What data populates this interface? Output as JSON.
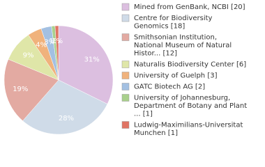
{
  "chart_data": {
    "type": "pie",
    "labels": [
      [
        "Mined from GenBank, NCBI [20]"
      ],
      [
        "Centre for Biodiversity",
        "Genomics [18]"
      ],
      [
        "Smithsonian Institution,",
        "National Museum of Natural",
        "Histor... [12]"
      ],
      [
        "Naturalis Biodiversity Center [6]"
      ],
      [
        "University of Guelph [3]"
      ],
      [
        "GATC Biotech AG [2]"
      ],
      [
        "University of Johannesburg,",
        "Department of Botany and Plant",
        "... [1]"
      ],
      [
        "Ludwig-Maximilians-Universitat",
        "Munchen [1]"
      ]
    ],
    "values": [
      31,
      28,
      19,
      9,
      4,
      3,
      1,
      1
    ],
    "value_labels": [
      "31%",
      "28%",
      "19%",
      "9%",
      "4%",
      "3%",
      "1%",
      "1%"
    ],
    "colors": [
      "#dcbfe0",
      "#cfdbe8",
      "#e3aaa2",
      "#dfe6a8",
      "#f0b27c",
      "#a3c0e2",
      "#a9d08c",
      "#e07464"
    ]
  }
}
